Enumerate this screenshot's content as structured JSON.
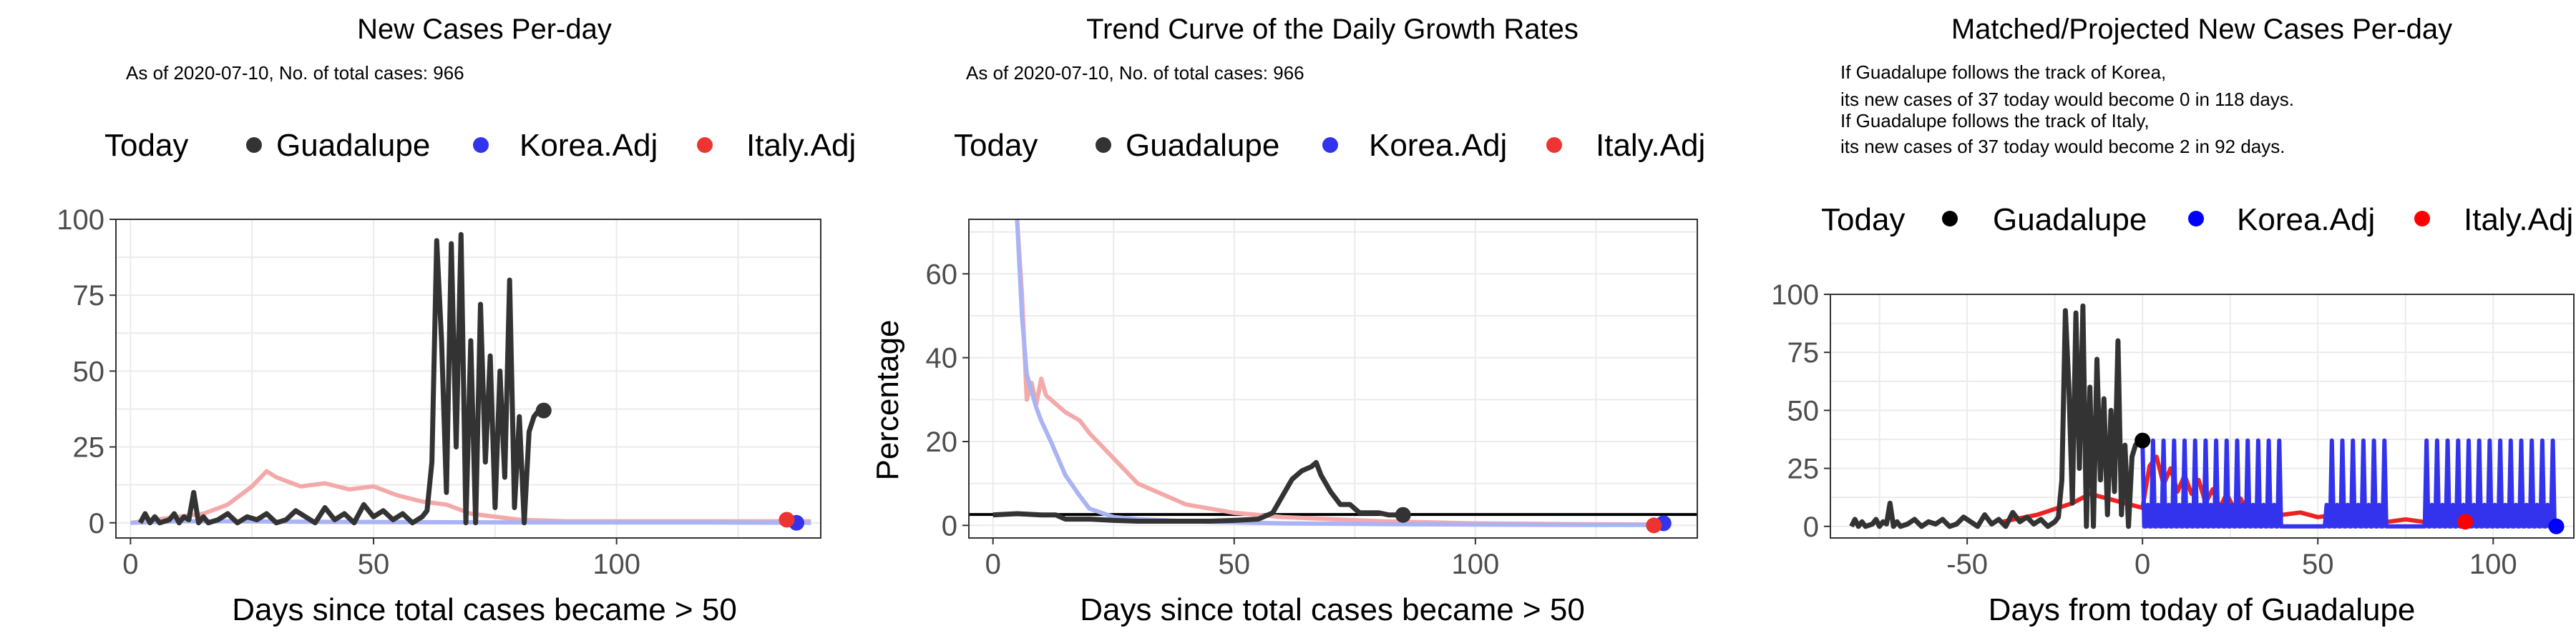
{
  "chart_data": [
    {
      "type": "line",
      "title": "New Cases Per-day",
      "subtitle": "As of 2020-07-10, No. of total cases: 966",
      "xlabel": "Days since total cases became > 50",
      "ylabel": "",
      "xlim": [
        -3,
        142
      ],
      "ylim": [
        -5,
        100
      ],
      "xticks": [
        0,
        50,
        100
      ],
      "yticks": [
        0,
        25,
        50,
        75,
        100
      ],
      "grid": true,
      "legend_placement": "top",
      "legend": [
        {
          "label": "Today",
          "kind": "title"
        },
        {
          "label": "Guadalupe",
          "color": "#333333"
        },
        {
          "label": "Korea.Adj",
          "color": "#3333ee"
        },
        {
          "label": "Italy.Adj",
          "color": "#ee3333"
        }
      ],
      "series": [
        {
          "name": "Italy.Adj",
          "color": "#f4a9a9",
          "x": [
            0,
            5,
            10,
            15,
            20,
            25,
            28,
            30,
            35,
            40,
            45,
            50,
            55,
            60,
            65,
            70,
            80,
            90,
            100,
            120,
            140
          ],
          "y": [
            0,
            1,
            2,
            3,
            6,
            12,
            17,
            15,
            12,
            13,
            11,
            12,
            9,
            7,
            6,
            3,
            1,
            0.5,
            0.5,
            0.5,
            0.5
          ]
        },
        {
          "name": "Korea.Adj",
          "color": "#aab3f4",
          "x": [
            0,
            10,
            20,
            40,
            60,
            80,
            100,
            120,
            140
          ],
          "y": [
            0,
            0.5,
            0.5,
            0.3,
            0.2,
            0.1,
            0.1,
            0.1,
            0
          ]
        },
        {
          "name": "Guadalupe",
          "color": "#333333",
          "x": [
            2,
            3,
            4,
            5,
            6,
            8,
            9,
            10,
            11,
            12,
            13,
            14,
            15,
            16,
            18,
            20,
            22,
            24,
            26,
            28,
            30,
            32,
            34,
            36,
            38,
            40,
            42,
            44,
            46,
            48,
            50,
            52,
            54,
            56,
            58,
            60,
            61,
            62,
            63,
            64,
            65,
            66,
            67,
            68,
            69,
            70,
            71,
            72,
            73,
            74,
            75,
            76,
            77,
            78,
            79,
            80,
            81,
            82,
            83,
            84,
            85
          ],
          "y": [
            0,
            3,
            0,
            2,
            0,
            1,
            3,
            0,
            2,
            1,
            10,
            0,
            2,
            0,
            1,
            3,
            0,
            2,
            1,
            3,
            0,
            1,
            4,
            2,
            0,
            5,
            1,
            3,
            0,
            6,
            2,
            4,
            1,
            3,
            0,
            2,
            4,
            20,
            93,
            60,
            10,
            92,
            25,
            95,
            0,
            60,
            0,
            72,
            20,
            55,
            5,
            50,
            15,
            80,
            5,
            35,
            0,
            30,
            35,
            37,
            37
          ]
        },
        {
          "name": "Today",
          "color": "#333333",
          "x": [
            85
          ],
          "y": [
            37
          ],
          "marker": "point"
        },
        {
          "name": "Korea.Adj today",
          "color": "#3333ee",
          "x": [
            137
          ],
          "y": [
            0
          ],
          "marker": "point"
        },
        {
          "name": "Italy.Adj today",
          "color": "#ee3333",
          "x": [
            135
          ],
          "y": [
            1
          ],
          "marker": "point"
        }
      ]
    },
    {
      "type": "line",
      "title": "Trend Curve of the Daily Growth Rates",
      "subtitle": "As of 2020-07-10, No. of total cases: 966",
      "xlabel": "Days since total cases became > 50",
      "ylabel": "Percentage",
      "xlim": [
        -5,
        146
      ],
      "ylim": [
        -3,
        73
      ],
      "xticks": [
        0,
        50,
        100
      ],
      "yticks": [
        0,
        20,
        40,
        60
      ],
      "hline": 2.6,
      "grid": true,
      "legend_placement": "top",
      "legend": [
        {
          "label": "Today",
          "kind": "title"
        },
        {
          "label": "Guadalupe",
          "color": "#333333"
        },
        {
          "label": "Korea.Adj",
          "color": "#3333ee"
        },
        {
          "label": "Italy.Adj",
          "color": "#ee3333"
        }
      ],
      "series": [
        {
          "name": "Italy.Adj",
          "color": "#f4a9a9",
          "x": [
            5,
            6,
            7,
            8,
            9,
            10,
            11,
            12,
            15,
            18,
            20,
            25,
            30,
            40,
            50,
            60,
            80,
            100,
            120,
            140
          ],
          "y": [
            73,
            55,
            30,
            34,
            29,
            35,
            31,
            30,
            27,
            25,
            22,
            16,
            10,
            5,
            3,
            2,
            1,
            0.5,
            0.3,
            0.2
          ]
        },
        {
          "name": "Korea.Adj",
          "color": "#aab3f4",
          "x": [
            5,
            6,
            7,
            8,
            9,
            10,
            12,
            15,
            18,
            20,
            25,
            30,
            40,
            60,
            80,
            100,
            120,
            140
          ],
          "y": [
            73,
            50,
            36,
            32,
            28,
            25,
            20,
            12,
            7,
            4,
            2,
            1.5,
            1,
            0.5,
            0.3,
            0.2,
            0.1,
            0.1
          ]
        },
        {
          "name": "Guadalupe",
          "color": "#333333",
          "x": [
            0,
            5,
            10,
            13,
            15,
            20,
            25,
            30,
            35,
            40,
            45,
            50,
            55,
            58,
            60,
            62,
            64,
            66,
            67,
            68,
            70,
            72,
            74,
            76,
            78,
            80,
            82,
            84,
            85
          ],
          "y": [
            2.5,
            2.8,
            2.5,
            2.5,
            1.5,
            1.5,
            1.2,
            1,
            1,
            1,
            1,
            1.2,
            1.5,
            3,
            7,
            11,
            13,
            14,
            15,
            12,
            8,
            5,
            5,
            3,
            3,
            3,
            2.5,
            2.5,
            2.5
          ]
        },
        {
          "name": "Today",
          "color": "#333333",
          "x": [
            85
          ],
          "y": [
            2.5
          ],
          "marker": "point"
        },
        {
          "name": "Korea.Adj today",
          "color": "#3333ee",
          "x": [
            139
          ],
          "y": [
            0.5
          ],
          "marker": "point"
        },
        {
          "name": "Italy.Adj today",
          "color": "#ee3333",
          "x": [
            137
          ],
          "y": [
            0
          ],
          "marker": "point"
        }
      ]
    },
    {
      "type": "line",
      "title": "Matched/Projected New Cases Per-day",
      "subtitle_lines": [
        "If Guadalupe follows the track of Korea,",
        "its new cases of 37 today would become 0 in 118 days.",
        "If Guadalupe follows the track of Italy,",
        "its new cases of 37 today would become 2 in 92 days."
      ],
      "xlabel": "Days from today of Guadalupe",
      "ylabel": "",
      "xlim": [
        -89,
        123
      ],
      "ylim": [
        -5,
        100
      ],
      "xticks": [
        -50,
        0,
        50,
        100
      ],
      "yticks": [
        0,
        25,
        50,
        75,
        100
      ],
      "grid": true,
      "legend_placement": "top",
      "legend": [
        {
          "label": "Today",
          "kind": "title"
        },
        {
          "label": "Guadalupe",
          "color": "#000000"
        },
        {
          "label": "Korea.Adj",
          "color": "#0000ff"
        },
        {
          "label": "Italy.Adj",
          "color": "#ff0000"
        }
      ],
      "series": [
        {
          "name": "Italy.Adj",
          "color": "#ee2222",
          "x": [
            -40,
            -30,
            -20,
            -15,
            -10,
            -5,
            0,
            2,
            4,
            6,
            8,
            10,
            12,
            14,
            16,
            18,
            20,
            22,
            24,
            26,
            28,
            30,
            35,
            40,
            45,
            50,
            55,
            60,
            65,
            70,
            75,
            80,
            85,
            90,
            95
          ],
          "y": [
            2,
            5,
            10,
            14,
            12,
            10,
            8,
            26,
            30,
            18,
            25,
            15,
            22,
            14,
            20,
            10,
            16,
            8,
            14,
            8,
            12,
            6,
            8,
            5,
            6,
            4,
            5,
            3,
            4,
            2,
            3,
            2,
            3,
            1,
            1
          ]
        },
        {
          "name": "Korea.Adj",
          "color": "#3333ee",
          "pattern": "spiky",
          "x_start": 0,
          "x_end": 118,
          "peak": 37
        },
        {
          "name": "Guadalupe",
          "color": "#333333",
          "x": [
            -83,
            -82,
            -81,
            -80,
            -79,
            -77,
            -76,
            -75,
            -74,
            -73,
            -72,
            -71,
            -70,
            -69,
            -67,
            -65,
            -63,
            -61,
            -59,
            -57,
            -55,
            -53,
            -51,
            -49,
            -47,
            -45,
            -43,
            -41,
            -39,
            -37,
            -35,
            -33,
            -31,
            -29,
            -27,
            -25,
            -24,
            -23,
            -22,
            -21,
            -20,
            -19,
            -18,
            -17,
            -16,
            -15,
            -14,
            -13,
            -12,
            -11,
            -10,
            -9,
            -8,
            -7,
            -6,
            -5,
            -4,
            -3,
            -2,
            -1,
            0
          ],
          "y": [
            0,
            3,
            0,
            2,
            0,
            1,
            3,
            0,
            2,
            1,
            10,
            0,
            2,
            0,
            1,
            3,
            0,
            2,
            1,
            3,
            0,
            1,
            4,
            2,
            0,
            5,
            1,
            3,
            0,
            6,
            2,
            4,
            1,
            3,
            0,
            2,
            4,
            20,
            93,
            60,
            10,
            92,
            25,
            95,
            0,
            60,
            0,
            72,
            20,
            55,
            5,
            50,
            15,
            80,
            5,
            35,
            0,
            30,
            35,
            37,
            37
          ]
        },
        {
          "name": "Today",
          "color": "#000000",
          "x": [
            0
          ],
          "y": [
            37
          ],
          "marker": "point"
        },
        {
          "name": "Korea.Adj end",
          "color": "#0000ff",
          "x": [
            118
          ],
          "y": [
            0
          ],
          "marker": "point"
        },
        {
          "name": "Italy.Adj end",
          "color": "#ff0000",
          "x": [
            92
          ],
          "y": [
            2
          ],
          "marker": "point"
        }
      ]
    }
  ]
}
